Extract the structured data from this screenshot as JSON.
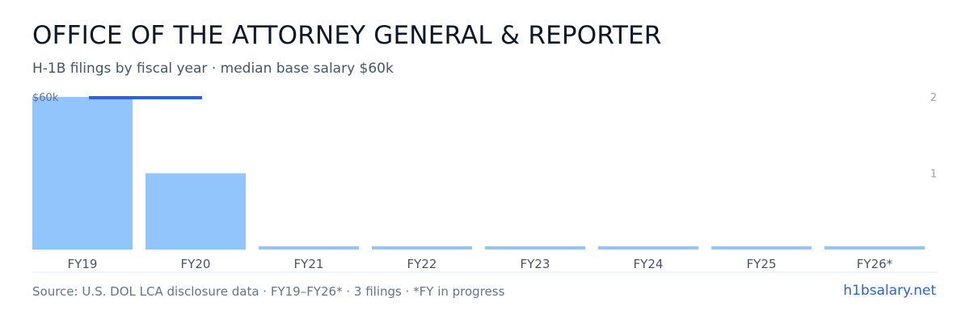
{
  "header": {
    "title": "OFFICE OF THE ATTORNEY GENERAL & REPORTER",
    "subtitle": "H-1B filings by fiscal year · median base salary $60k"
  },
  "footer": {
    "source": "Source: U.S. DOL LCA disclosure data · FY19–FY26* · 3 filings · *FY in progress",
    "brand": "h1bsalary.net"
  },
  "colors": {
    "bar": "#93c5fd",
    "salary_line": "#2563eb",
    "baseline": "#e2e8f0"
  },
  "chart_data": {
    "type": "bar",
    "categories": [
      "FY19",
      "FY20",
      "FY21",
      "FY22",
      "FY23",
      "FY24",
      "FY25",
      "FY26*"
    ],
    "values": [
      2,
      1,
      0,
      0,
      0,
      0,
      0,
      0
    ],
    "ylim": [
      0,
      2
    ],
    "y_ticks": [
      "1",
      "2"
    ],
    "salary_marker": {
      "label": "$60k",
      "value": 60000
    },
    "grid": false
  }
}
